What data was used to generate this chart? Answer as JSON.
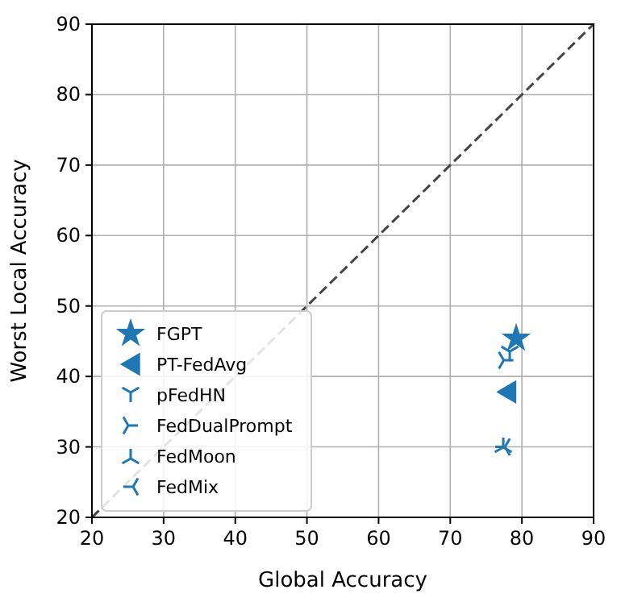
{
  "chart_data": {
    "type": "scatter",
    "xlabel": "Global Accuracy",
    "ylabel": "Worst Local Accuracy",
    "xlim": [
      20,
      90
    ],
    "ylim": [
      20,
      90
    ],
    "xticks": [
      20,
      30,
      40,
      50,
      60,
      70,
      80,
      90
    ],
    "yticks": [
      20,
      30,
      40,
      50,
      60,
      70,
      80,
      90
    ],
    "grid": true,
    "legend": "bottom left",
    "series": [
      {
        "name": "FGPT",
        "color": "#1f77b4",
        "marker": "star",
        "x": [
          79.2
        ],
        "values": [
          45.4
        ]
      },
      {
        "name": "PT-FedAvg",
        "color": "#1f77b4",
        "marker": "triangle",
        "x": [
          77.9
        ],
        "values": [
          37.8
        ]
      },
      {
        "name": "pFedHN",
        "color": "#1f77b4",
        "marker": "cross",
        "x": [
          78.3
        ],
        "values": [
          43.2
        ]
      },
      {
        "name": "FedDualPrompt",
        "color": "#1f77b4",
        "marker": "cross",
        "x": [
          77.8
        ],
        "values": [
          42.3
        ]
      },
      {
        "name": "FedMoon",
        "color": "#1f77b4",
        "marker": "cross",
        "x": [
          77.4
        ],
        "values": [
          30.3
        ]
      },
      {
        "name": "FedMix",
        "color": "#1f77b4",
        "marker": "cross",
        "x": [
          77.3
        ],
        "values": [
          30.0
        ]
      },
      {
        "type": "line",
        "color": "#444444",
        "line_style": "dashed",
        "marker": "none",
        "x": [
          20,
          90
        ],
        "values": [
          20,
          90
        ]
      }
    ]
  }
}
